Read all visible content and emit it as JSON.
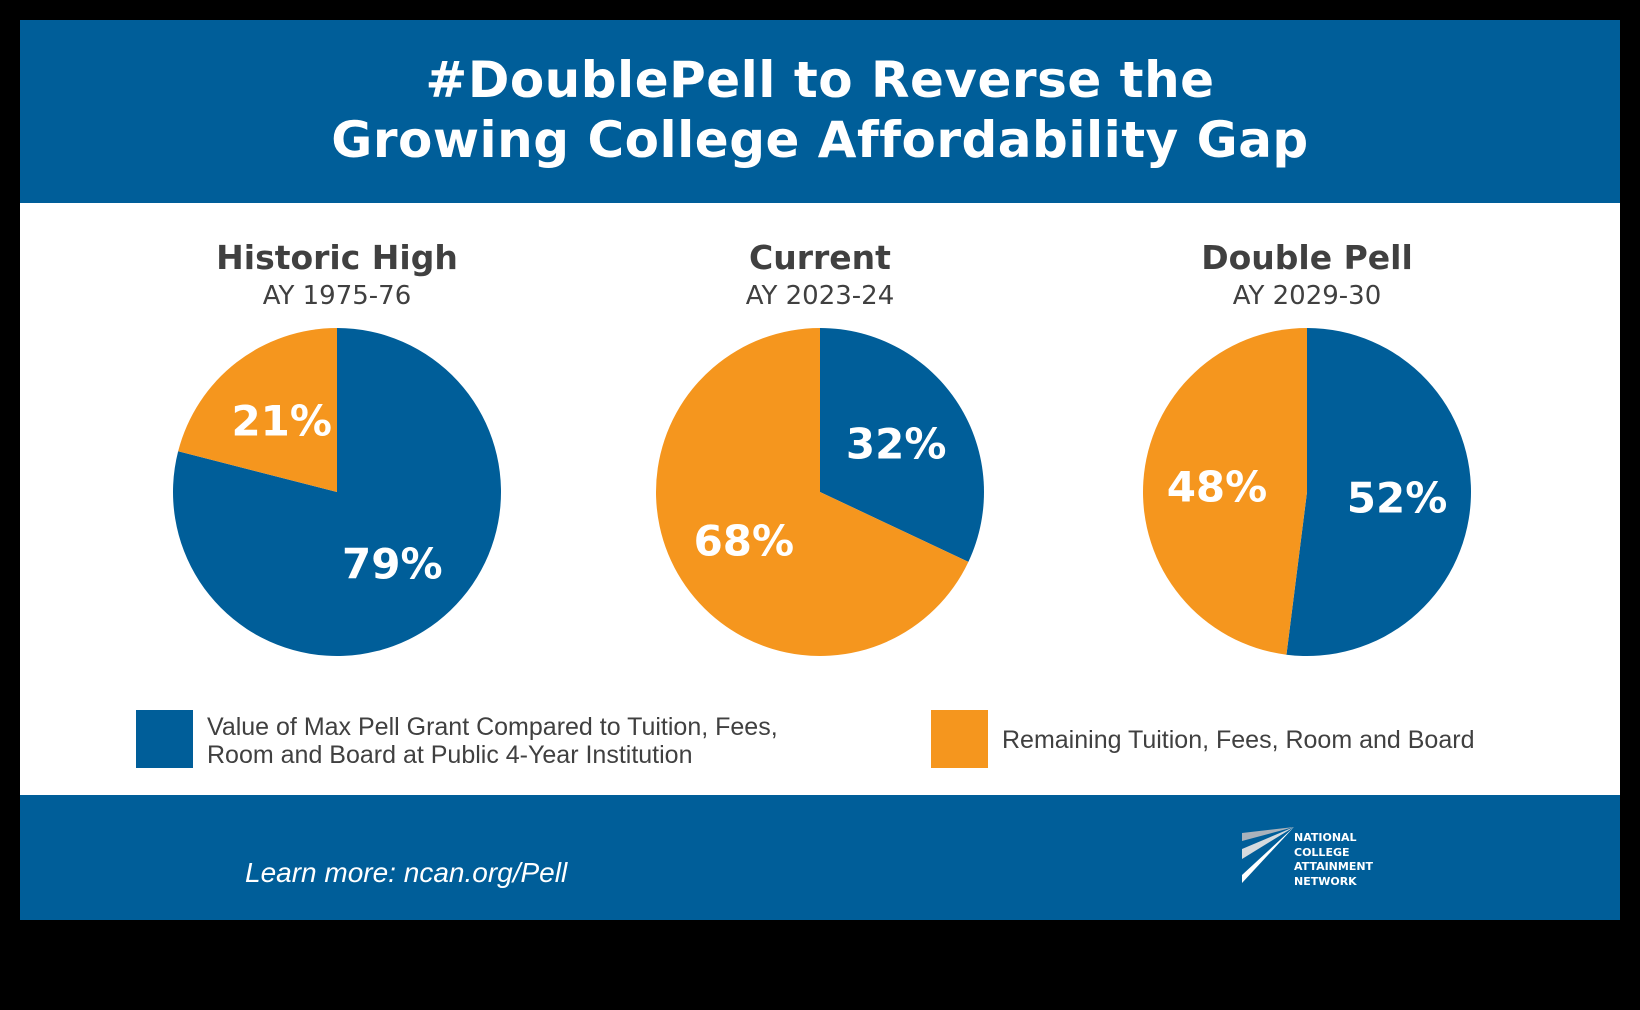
{
  "header": {
    "title_line1": "#DoublePell to Reverse the",
    "title_line2": "Growing College Affordability Gap"
  },
  "colors": {
    "blue": "#005e99",
    "orange": "#f5961e"
  },
  "chart_data": [
    {
      "type": "pie",
      "title": "Historic High",
      "subtitle": "AY 1975-76",
      "slices": [
        {
          "label": "79%",
          "value": 79,
          "color": "#005e99"
        },
        {
          "label": "21%",
          "value": 21,
          "color": "#f5961e"
        }
      ]
    },
    {
      "type": "pie",
      "title": "Current",
      "subtitle": "AY 2023-24",
      "slices": [
        {
          "label": "32%",
          "value": 32,
          "color": "#005e99"
        },
        {
          "label": "68%",
          "value": 68,
          "color": "#f5961e"
        }
      ]
    },
    {
      "type": "pie",
      "title": "Double Pell",
      "subtitle": "AY 2029-30",
      "slices": [
        {
          "label": "52%",
          "value": 52,
          "color": "#005e99"
        },
        {
          "label": "48%",
          "value": 48,
          "color": "#f5961e"
        }
      ]
    }
  ],
  "legend": [
    {
      "line1": "Value of Max Pell Grant Compared to Tuition, Fees,",
      "line2": "Room and Board at Public 4-Year Institution",
      "color": "#005e99"
    },
    {
      "line1": "Remaining Tuition, Fees, Room and Board",
      "line2": "",
      "color": "#f5961e"
    }
  ],
  "footer": {
    "learn_more": "Learn more: ncan.org/Pell",
    "logo_text": [
      "NATIONAL",
      "COLLEGE",
      "ATTAINMENT",
      "NETWORK"
    ]
  }
}
